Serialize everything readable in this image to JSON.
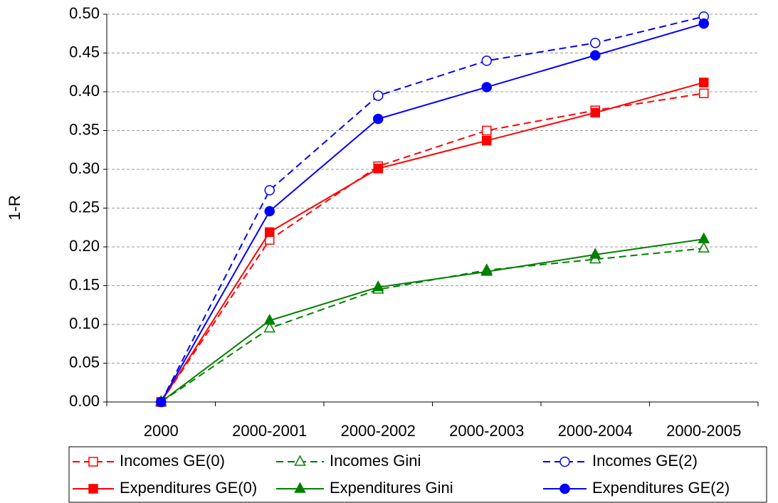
{
  "chart_data": {
    "type": "line",
    "y_label": "1-R",
    "categories": [
      "2000",
      "2000-2001",
      "2000-2002",
      "2000-2003",
      "2000-2004",
      "2000-2005"
    ],
    "ylim": [
      0,
      0.5
    ],
    "yticks": [
      {
        "value": 0,
        "label": "0.00"
      },
      {
        "value": 0.05,
        "label": "0.05"
      },
      {
        "value": 0.1,
        "label": "0.10"
      },
      {
        "value": 0.15,
        "label": "0.15"
      },
      {
        "value": 0.2,
        "label": "0.20"
      },
      {
        "value": 0.25,
        "label": "0.25"
      },
      {
        "value": 0.3,
        "label": "0.30"
      },
      {
        "value": 0.35,
        "label": "0.35"
      },
      {
        "value": 0.4,
        "label": "0.40"
      },
      {
        "value": 0.45,
        "label": "0.45"
      },
      {
        "value": 0.5,
        "label": "0.50"
      }
    ],
    "grid": true,
    "legend": "bottom",
    "series": [
      {
        "name": "Incomes GE(0)",
        "color": "#ff0000",
        "dashed": true,
        "marker": "square",
        "filled": false,
        "values": [
          0,
          0.209,
          0.304,
          0.35,
          0.376,
          0.398
        ]
      },
      {
        "name": "Incomes Gini",
        "color": "#008000",
        "dashed": true,
        "marker": "triangle",
        "filled": false,
        "values": [
          0,
          0.095,
          0.145,
          0.17,
          0.184,
          0.198
        ]
      },
      {
        "name": "Incomes GE(2)",
        "color": "#0000ff",
        "dashed": true,
        "marker": "circle",
        "filled": false,
        "values": [
          0,
          0.273,
          0.395,
          0.44,
          0.463,
          0.497
        ]
      },
      {
        "name": "Expenditures GE(0)",
        "color": "#ff0000",
        "dashed": false,
        "marker": "square",
        "filled": true,
        "values": [
          0,
          0.219,
          0.301,
          0.337,
          0.373,
          0.412
        ]
      },
      {
        "name": "Expenditures Gini",
        "color": "#008000",
        "dashed": false,
        "marker": "triangle",
        "filled": true,
        "values": [
          0,
          0.105,
          0.148,
          0.168,
          0.19,
          0.21
        ]
      },
      {
        "name": "Expenditures GE(2)",
        "color": "#0000ff",
        "dashed": false,
        "marker": "circle",
        "filled": true,
        "values": [
          0,
          0.246,
          0.365,
          0.406,
          0.447,
          0.488
        ]
      }
    ]
  }
}
